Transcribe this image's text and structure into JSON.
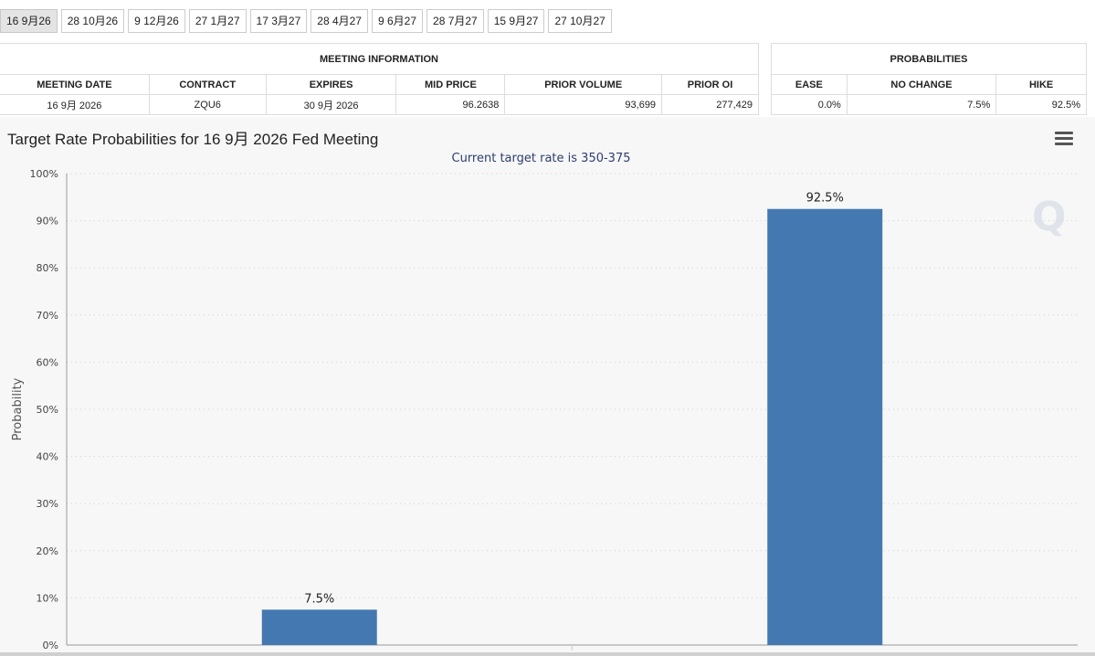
{
  "tabs": [
    {
      "label": "16 9月26",
      "active": true
    },
    {
      "label": "28 10月26",
      "active": false
    },
    {
      "label": "9 12月26",
      "active": false
    },
    {
      "label": "27 1月27",
      "active": false
    },
    {
      "label": "17 3月27",
      "active": false
    },
    {
      "label": "28 4月27",
      "active": false
    },
    {
      "label": "9 6月27",
      "active": false
    },
    {
      "label": "28 7月27",
      "active": false
    },
    {
      "label": "15 9月27",
      "active": false
    },
    {
      "label": "27 10月27",
      "active": false
    }
  ],
  "meeting_info": {
    "title": "MEETING INFORMATION",
    "headers": [
      "MEETING DATE",
      "CONTRACT",
      "EXPIRES",
      "MID PRICE",
      "PRIOR VOLUME",
      "PRIOR OI"
    ],
    "row": [
      "16 9月 2026",
      "ZQU6",
      "30 9月 2026",
      "96.2638",
      "93,699",
      "277,429"
    ]
  },
  "probabilities": {
    "title": "PROBABILITIES",
    "headers": [
      "EASE",
      "NO CHANGE",
      "HIKE"
    ],
    "row": [
      "0.0%",
      "7.5%",
      "92.5%"
    ]
  },
  "chart": {
    "title": "Target Rate Probabilities for 16 9月 2026 Fed Meeting",
    "subtitle": "Current target rate is 350-375",
    "watermark": "Q"
  },
  "chart_data": {
    "type": "bar",
    "categories": [
      "",
      ""
    ],
    "values": [
      7.5,
      92.5
    ],
    "value_labels": [
      "7.5%",
      "92.5%"
    ],
    "ylabel": "Probability",
    "ylim": [
      0,
      100
    ],
    "yticks": [
      "0%",
      "10%",
      "20%",
      "30%",
      "40%",
      "50%",
      "60%",
      "70%",
      "80%",
      "90%",
      "100%"
    ],
    "grid": true,
    "bar_color": "#4379b0"
  }
}
